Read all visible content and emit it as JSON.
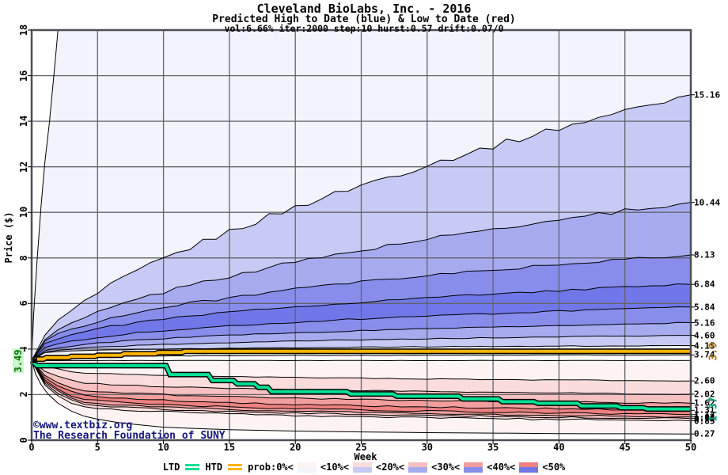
{
  "header": {
    "title": "Cleveland BioLabs, Inc. - 2016",
    "subtitle": "Predicted High to Date (blue) &  Low to Date (red)",
    "params": "vol:6.66% iter:2000 step:10 hurst:0.57 drift:0.07/0"
  },
  "watermark": {
    "line1": "©www.textbiz.org",
    "line2": "The Research Foundation of SUNY"
  },
  "axes": {
    "y_label": "Price ($)",
    "x_label": "Week",
    "y_ticks": [
      0,
      2,
      4,
      6,
      8,
      10,
      12,
      14,
      16,
      18
    ],
    "x_ticks": [
      0,
      5,
      10,
      15,
      20,
      25,
      30,
      35,
      40,
      45,
      50
    ]
  },
  "annotations": {
    "start_price": "3.49",
    "htd_final": "3.9",
    "ltd_final": "1.37"
  },
  "legend": {
    "ltd_label": "LTD",
    "htd_label": "HTD",
    "prob_labels": [
      "prob:0%<",
      "<10%<",
      "<20%<",
      "<30%<",
      "<40%<",
      "<50%"
    ]
  },
  "colors": {
    "blue_bands": [
      "#f2f3fb",
      "#c6caf4",
      "#a6abf0",
      "#888dec",
      "#7177e8"
    ],
    "red_bands": [
      "#fdf3f3",
      "#fbdcdc",
      "#f7c0c0",
      "#f29e9e",
      "#ed8181"
    ],
    "ltd_green": "#00e094",
    "htd_gold": "#ffb400",
    "grid": "#63646c",
    "frame": "#4e4f56",
    "boundary": "#000000",
    "watermark_navy": "#16167a",
    "start_label_green": "#007700",
    "start_label_bg": "#ccf5cc",
    "htd_label_gold": "#a87800",
    "ltd_label_teal": "#00a87c"
  },
  "chart_data": {
    "type": "area",
    "description": "Monte Carlo fan chart: percentile bands of predicted high-to-date (blue, above start) and low-to-date (red, below start) stock price by week",
    "title": "Cleveland BioLabs, Inc. - 2016",
    "xlabel": "Week",
    "ylabel": "Price ($)",
    "x_range": [
      0,
      50
    ],
    "y_range": [
      0,
      18
    ],
    "grid": true,
    "start_price": 3.49,
    "high_band_ends": [
      15.16,
      10.44,
      8.13,
      6.84,
      5.84,
      5.16,
      4.6,
      4.15,
      3.74
    ],
    "high_band_exponents": [
      0.6,
      0.52,
      0.43,
      0.38,
      0.36,
      0.34,
      0.28,
      0.16,
      0.11
    ],
    "low_top_end": 3.5,
    "low_top_exponent": 0.32,
    "low_band_ends": [
      2.6,
      2.02,
      1.62,
      1.31,
      1.12,
      1.02,
      0.95,
      0.85
    ],
    "low_band_exponents": [
      0.2,
      0.16,
      0.14,
      0.14,
      0.13,
      0.12,
      0.11,
      0.1
    ],
    "max_envelope": [
      [
        0,
        3.49
      ],
      [
        0.15,
        5.5
      ],
      [
        0.4,
        7.8
      ],
      [
        0.7,
        10.2
      ],
      [
        1.0,
        12.2
      ],
      [
        1.34,
        13.9
      ],
      [
        1.7,
        16.1
      ],
      [
        2.0,
        18.0
      ]
    ],
    "min_envelope": [
      [
        0,
        3.49
      ],
      [
        0.3,
        2.9
      ],
      [
        0.7,
        2.45
      ],
      [
        1.2,
        2.05
      ],
      [
        2,
        1.62
      ],
      [
        3,
        1.28
      ],
      [
        4,
        1.05
      ],
      [
        5,
        0.92
      ],
      [
        6.5,
        0.78
      ],
      [
        8,
        0.68
      ],
      [
        10,
        0.57
      ],
      [
        12,
        0.52
      ],
      [
        15,
        0.46
      ],
      [
        20,
        0.4
      ],
      [
        25,
        0.36
      ],
      [
        30,
        0.33
      ],
      [
        35,
        0.31
      ],
      [
        40,
        0.29
      ],
      [
        45,
        0.28
      ],
      [
        50,
        0.27
      ]
    ],
    "htd_steps": [
      [
        0,
        3.49
      ],
      [
        0.3,
        3.56
      ],
      [
        0.9,
        3.56
      ],
      [
        1.1,
        3.62
      ],
      [
        2.8,
        3.62
      ],
      [
        3.0,
        3.68
      ],
      [
        4.8,
        3.68
      ],
      [
        5.0,
        3.73
      ],
      [
        6.8,
        3.73
      ],
      [
        7.0,
        3.79
      ],
      [
        9.4,
        3.79
      ],
      [
        9.6,
        3.85
      ],
      [
        11.4,
        3.85
      ],
      [
        11.6,
        3.9
      ],
      [
        50,
        3.9
      ]
    ],
    "ltd_steps": [
      [
        0,
        3.49
      ],
      [
        0.4,
        3.27
      ],
      [
        10.2,
        3.27
      ],
      [
        10.5,
        2.88
      ],
      [
        13.4,
        2.88
      ],
      [
        13.7,
        2.62
      ],
      [
        15.3,
        2.62
      ],
      [
        15.6,
        2.47
      ],
      [
        16.9,
        2.47
      ],
      [
        17.2,
        2.32
      ],
      [
        17.9,
        2.32
      ],
      [
        18.2,
        2.13
      ],
      [
        23.9,
        2.13
      ],
      [
        24.2,
        2.03
      ],
      [
        27.4,
        2.03
      ],
      [
        27.7,
        1.93
      ],
      [
        32.4,
        1.93
      ],
      [
        32.7,
        1.81
      ],
      [
        35.4,
        1.81
      ],
      [
        35.7,
        1.69
      ],
      [
        38.1,
        1.69
      ],
      [
        38.4,
        1.62
      ],
      [
        41.4,
        1.62
      ],
      [
        41.7,
        1.5
      ],
      [
        44.4,
        1.5
      ],
      [
        44.7,
        1.42
      ],
      [
        46.4,
        1.42
      ],
      [
        46.7,
        1.37
      ],
      [
        50,
        1.37
      ]
    ],
    "htd_final": 3.9,
    "ltd_final": 1.37
  }
}
